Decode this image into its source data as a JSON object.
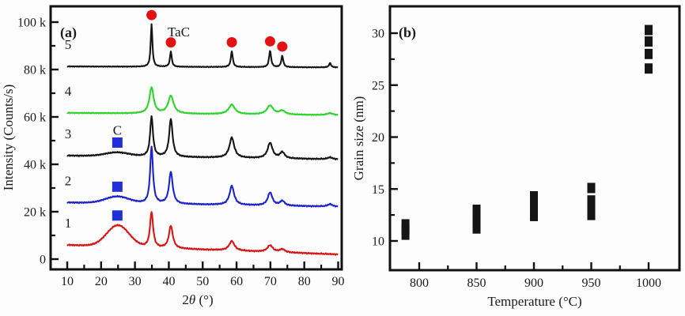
{
  "figure": {
    "background": "#fdfdfd",
    "panel_a_label": "(a)",
    "panel_b_label": "(b)"
  },
  "chart_data": [
    {
      "type": "line",
      "panel_label": "(a)",
      "xlabel": "2θ (°)",
      "ylabel": "Intensity (Counts/s)",
      "x_axis": {
        "min": 10,
        "max": 90,
        "ticks": [
          10,
          20,
          30,
          40,
          50,
          60,
          70,
          80,
          90
        ],
        "tick_labels": [
          "10",
          "20",
          "30",
          "40",
          "50",
          "60",
          "70",
          "80",
          "90"
        ],
        "minor_ticks": [
          15,
          25,
          35,
          45,
          55,
          65,
          75,
          85
        ]
      },
      "y_axis": {
        "min": 0,
        "max": 100,
        "units": "kCounts/s",
        "ticks": [
          0,
          20,
          40,
          60,
          80,
          100
        ],
        "tick_labels": [
          "0",
          "20 k",
          "40 k",
          "60 k",
          "80 k",
          "100 k"
        ],
        "minor_ticks": [
          10,
          30,
          50,
          70,
          90
        ]
      },
      "annotations": {
        "tac_label": "TaC",
        "carbon_label": "C",
        "tac_marker_color": "#e31212",
        "carbon_marker_color": "#2130d6",
        "tac_peaks_2theta": [
          34.9,
          40.6,
          58.6,
          69.9,
          73.5
        ],
        "carbon_peak_2theta": 24.8,
        "carbon_marked_series": [
          "3",
          "2",
          "1"
        ]
      },
      "series": [
        {
          "name": "5",
          "color": "#151515",
          "baseline_k": 81.3,
          "slope": -0.005,
          "noise": 0.18,
          "peaks": [
            [
              34.9,
              18,
              0.3
            ],
            [
              40.6,
              6.5,
              0.32
            ],
            [
              58.6,
              6.5,
              0.35
            ],
            [
              69.9,
              7,
              0.35
            ],
            [
              73.5,
              4.8,
              0.35
            ],
            [
              87.6,
              1.8,
              0.35
            ]
          ]
        },
        {
          "name": "4",
          "color": "#2ed32e",
          "baseline_k": 61.7,
          "slope": -0.012,
          "noise": 0.22,
          "peaks": [
            [
              34.9,
              11,
              0.75
            ],
            [
              40.6,
              7.5,
              0.95
            ],
            [
              58.6,
              4,
              1.1
            ],
            [
              69.9,
              3.8,
              1.1
            ],
            [
              73.5,
              1.6,
              1.0
            ],
            [
              87.6,
              0.8,
              1.0
            ]
          ]
        },
        {
          "name": "3",
          "color": "#151515",
          "baseline_k": 43.7,
          "slope": -0.02,
          "noise": 0.28,
          "hump": [
            24.8,
            1.6,
            3.5
          ],
          "peaks": [
            [
              34.9,
              17,
              0.5
            ],
            [
              40.6,
              16,
              0.6
            ],
            [
              58.6,
              8.5,
              0.85
            ],
            [
              69.9,
              6.5,
              0.85
            ],
            [
              73.5,
              2.6,
              0.8
            ],
            [
              87.6,
              0.8,
              0.8
            ]
          ]
        },
        {
          "name": "2",
          "color": "#1c24c8",
          "baseline_k": 23.9,
          "slope": -0.022,
          "noise": 0.28,
          "hump": [
            24.8,
            2.8,
            3.5
          ],
          "peaks": [
            [
              34.9,
              24,
              0.5
            ],
            [
              40.6,
              13.5,
              0.65
            ],
            [
              58.6,
              8,
              0.8
            ],
            [
              69.9,
              5.5,
              0.8
            ],
            [
              73.5,
              2,
              0.8
            ],
            [
              87.6,
              1,
              0.8
            ]
          ]
        },
        {
          "name": "1",
          "color": "#d81616",
          "baseline_k": 6.0,
          "slope": -0.05,
          "noise": 0.3,
          "hump": [
            25,
            9,
            3.3
          ],
          "peaks": [
            [
              34.9,
              15,
              0.55
            ],
            [
              40.6,
              9.5,
              0.7
            ],
            [
              58.6,
              4,
              0.95
            ],
            [
              69.9,
              2.8,
              0.95
            ],
            [
              73.5,
              1.3,
              0.9
            ]
          ]
        }
      ]
    },
    {
      "type": "scatter",
      "panel_label": "(b)",
      "xlabel": "Temperature (°C)",
      "ylabel": "Grain size (nm)",
      "marker": {
        "shape": "square",
        "color": "#151515"
      },
      "x_axis": {
        "ticks": [
          800,
          850,
          900,
          950,
          1000
        ],
        "tick_labels": [
          "800",
          "850",
          "900",
          "950",
          "1000"
        ],
        "minor_ticks": [
          825,
          875,
          925,
          975
        ]
      },
      "y_axis": {
        "ticks": [
          10,
          15,
          20,
          25,
          30
        ],
        "tick_labels": [
          "10",
          "15",
          "20",
          "25",
          "30"
        ],
        "minor_ticks": [
          12.5,
          17.5,
          22.5,
          27.5
        ]
      },
      "points": [
        {
          "temperature": 800,
          "x_offset_c": -12,
          "grain_sizes_nm": [
            10.6,
            11.1,
            11.6
          ]
        },
        {
          "temperature": 850,
          "grain_sizes_nm": [
            11.2,
            11.9,
            12.5,
            13.0
          ]
        },
        {
          "temperature": 900,
          "grain_sizes_nm": [
            12.4,
            13.2,
            13.8,
            14.3
          ]
        },
        {
          "temperature": 950,
          "grain_sizes_nm": [
            12.5,
            13.2,
            13.9,
            15.1
          ]
        },
        {
          "temperature": 1000,
          "grain_sizes_nm": [
            26.6,
            28.0,
            29.2,
            30.3
          ]
        }
      ]
    }
  ]
}
